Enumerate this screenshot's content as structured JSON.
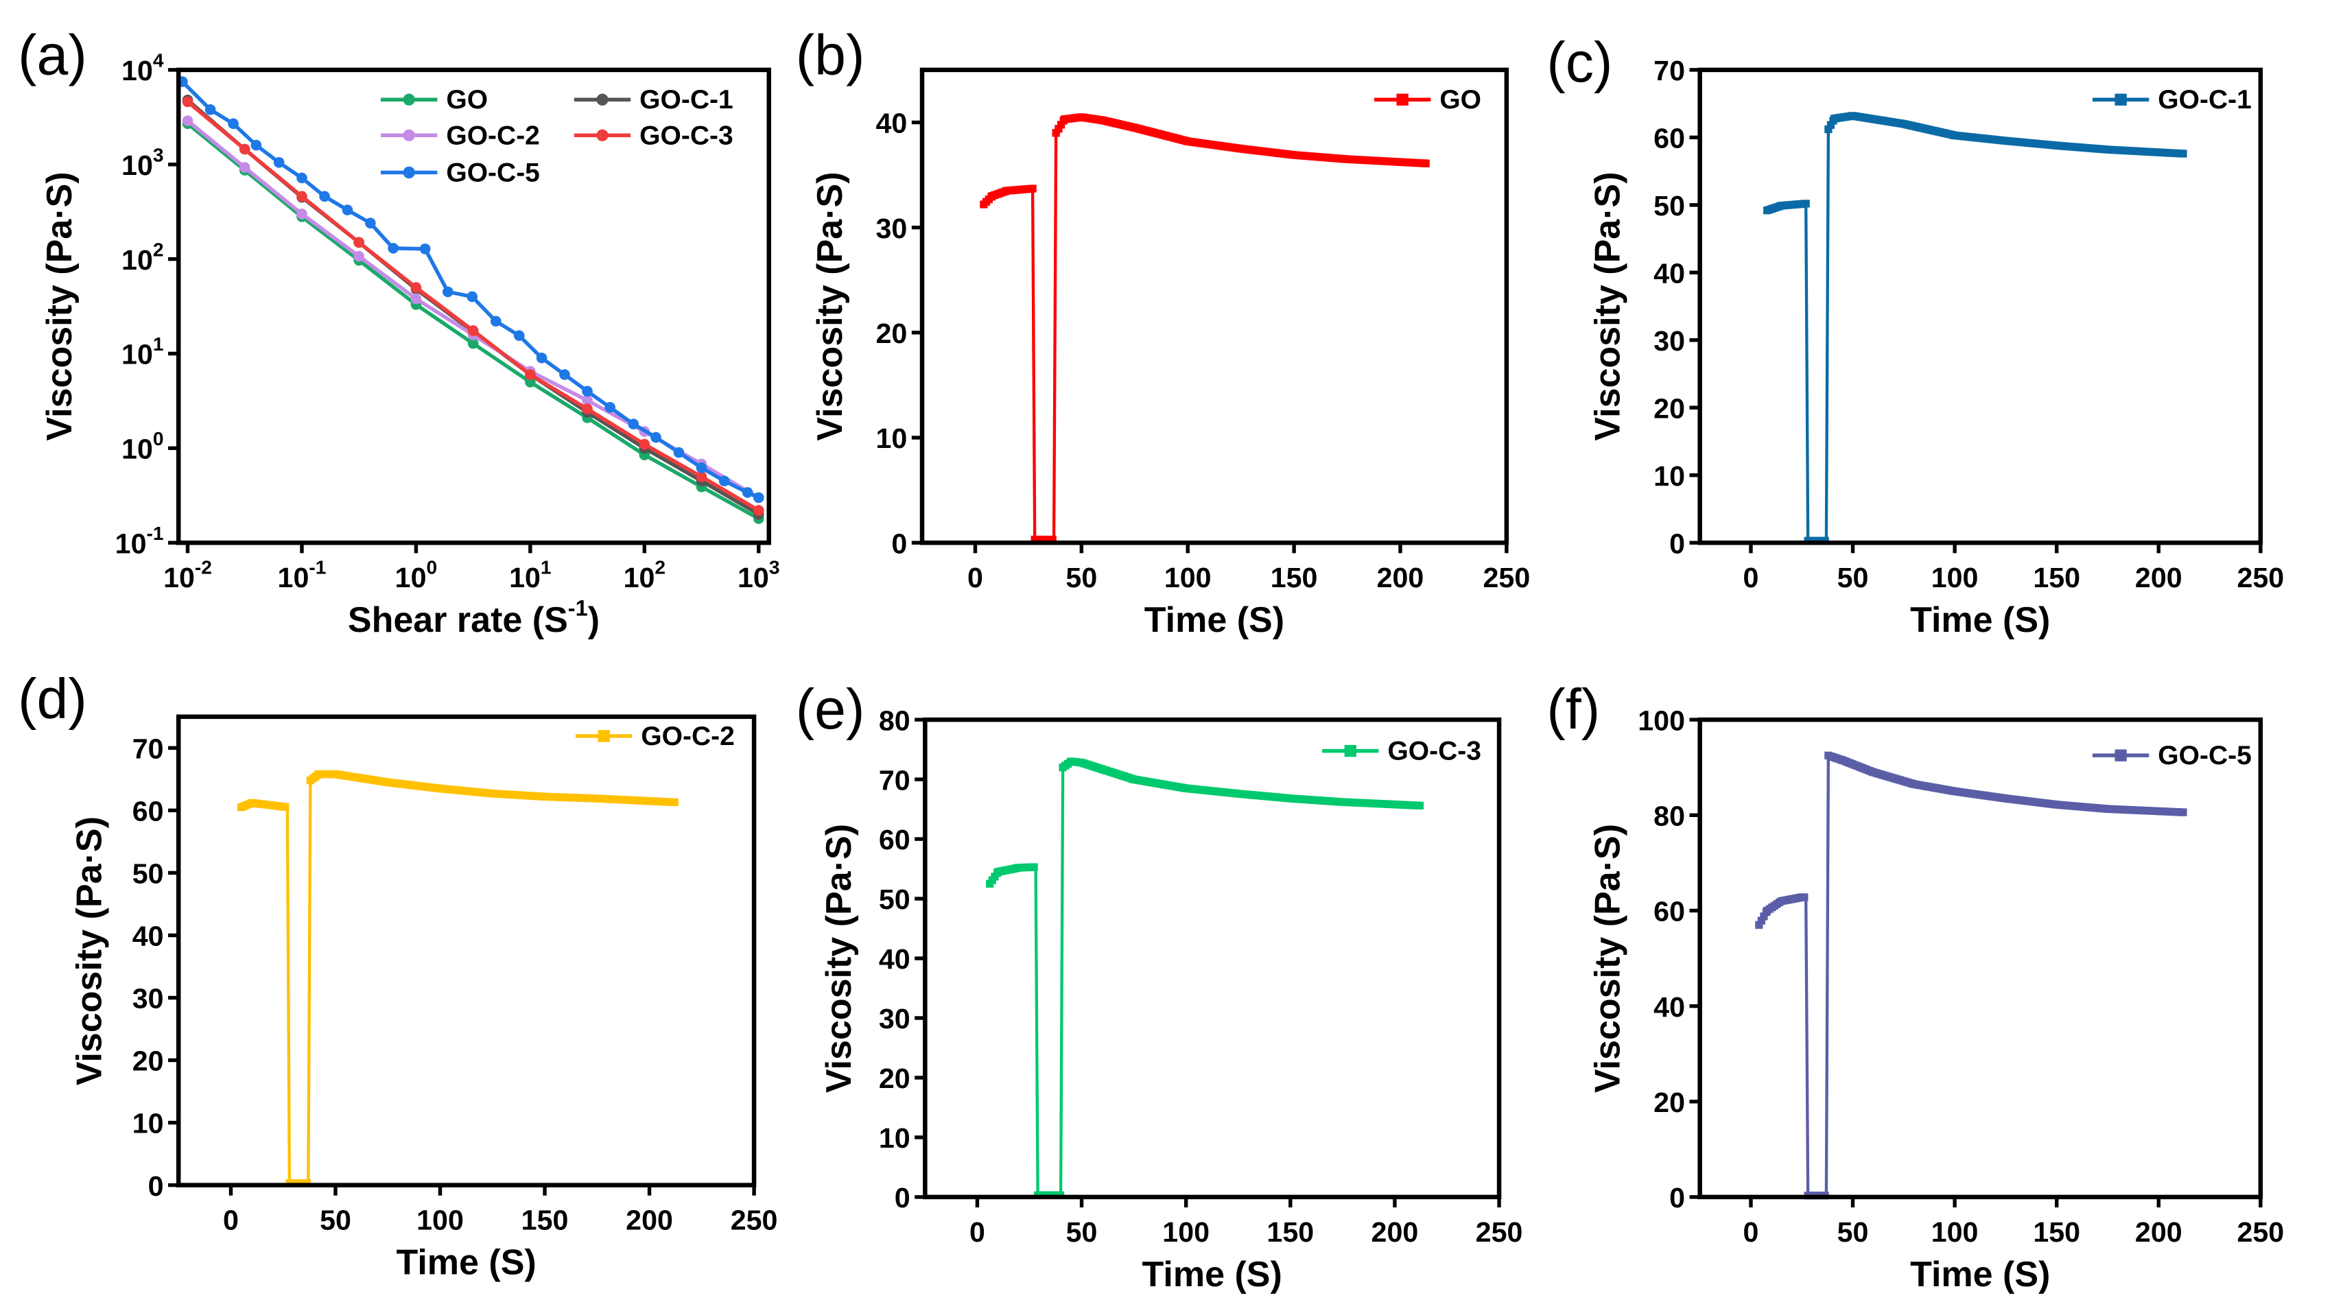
{
  "chart_data": [
    {
      "panel": "(a)",
      "type": "line",
      "xscale": "log",
      "yscale": "log",
      "xlabel": {
        "main": "Shear rate (S",
        "sup": "-1",
        "end": ")"
      },
      "ylabel": "Viscosity (Pa·S)",
      "xlim_log10": [
        -2.08,
        3.09
      ],
      "ylim_log10": [
        -1,
        4
      ],
      "xticks": [
        {
          "base": "10",
          "exp": "-2",
          "v": -2
        },
        {
          "base": "10",
          "exp": "-1",
          "v": -1
        },
        {
          "base": "10",
          "exp": "0",
          "v": 0
        },
        {
          "base": "10",
          "exp": "1",
          "v": 1
        },
        {
          "base": "10",
          "exp": "2",
          "v": 2
        },
        {
          "base": "10",
          "exp": "3",
          "v": 3
        }
      ],
      "yticks": [
        {
          "base": "10",
          "exp": "-1",
          "v": -1
        },
        {
          "base": "10",
          "exp": "0",
          "v": 0
        },
        {
          "base": "10",
          "exp": "1",
          "v": 1
        },
        {
          "base": "10",
          "exp": "2",
          "v": 2
        },
        {
          "base": "10",
          "exp": "3",
          "v": 3
        },
        {
          "base": "10",
          "exp": "4",
          "v": 4
        }
      ],
      "legend_position": "top-right",
      "series": [
        {
          "name": "GO",
          "color": "#1aa96a",
          "x": [
            0.01,
            0.0316,
            0.1,
            0.316,
            1,
            3.16,
            10,
            31.6,
            100,
            316,
            1000
          ],
          "y": [
            2700,
            870,
            280,
            97,
            33,
            12.8,
            5.0,
            2.1,
            0.85,
            0.39,
            0.18
          ]
        },
        {
          "name": "GO-C-1",
          "color": "#555555",
          "x": [
            0.01,
            0.0316,
            0.1,
            0.316,
            1,
            3.16,
            10,
            31.6,
            100,
            316,
            1000
          ],
          "y": [
            4800,
            1450,
            450,
            150,
            48,
            17,
            6,
            2.4,
            1.0,
            0.45,
            0.2
          ]
        },
        {
          "name": "GO-C-2",
          "color": "#c58be6",
          "x": [
            0.01,
            0.0316,
            0.1,
            0.316,
            1,
            3.16,
            10,
            31.6,
            100,
            316,
            1000
          ],
          "y": [
            2900,
            930,
            300,
            107,
            38,
            15.8,
            6.5,
            3.2,
            1.5,
            0.68,
            0.3
          ]
        },
        {
          "name": "GO-C-3",
          "color": "#f03c3c",
          "x": [
            0.01,
            0.0316,
            0.1,
            0.316,
            1,
            3.16,
            10,
            31.6,
            100,
            316,
            1000
          ],
          "y": [
            4600,
            1450,
            460,
            150,
            50,
            17.5,
            6,
            2.6,
            1.1,
            0.5,
            0.22
          ]
        },
        {
          "name": "GO-C-5",
          "color": "#1e78e6",
          "x": [
            0.009,
            0.0158,
            0.0251,
            0.0398,
            0.0631,
            0.1,
            0.158,
            0.251,
            0.398,
            0.631,
            1.2,
            1.9,
            3.1,
            5,
            8,
            12.6,
            20,
            31.6,
            50,
            80,
            126,
            200,
            316,
            500,
            800,
            1000
          ],
          "y": [
            7500,
            3800,
            2700,
            1600,
            1050,
            720,
            460,
            330,
            240,
            130,
            128,
            45,
            40,
            22,
            15.5,
            9,
            6,
            4,
            2.7,
            1.8,
            1.3,
            0.9,
            0.62,
            0.45,
            0.34,
            0.3
          ]
        }
      ]
    },
    {
      "panel": "(b)",
      "type": "line",
      "xlabel": "Time (S)",
      "ylabel": "Viscosity (Pa·S)",
      "xlim": [
        -25,
        250
      ],
      "ylim": [
        0,
        45
      ],
      "xticks": [
        "0",
        "50",
        "100",
        "150",
        "200",
        "250"
      ],
      "yticks": [
        "0",
        "10",
        "20",
        "30",
        "40"
      ],
      "legend_position": "top-right",
      "series": [
        {
          "name": "GO",
          "color": "#ff0000",
          "points": [
            [
              4,
              32.2
            ],
            [
              8,
              33
            ],
            [
              15,
              33.5
            ],
            [
              27,
              33.7
            ],
            [
              28,
              0.3
            ],
            [
              37,
              0.3
            ],
            [
              38,
              39
            ],
            [
              42,
              40.3
            ],
            [
              50,
              40.5
            ],
            [
              60,
              40.2
            ],
            [
              75,
              39.5
            ],
            [
              100,
              38.2
            ],
            [
              125,
              37.5
            ],
            [
              150,
              36.9
            ],
            [
              175,
              36.5
            ],
            [
              212,
              36.1
            ]
          ]
        }
      ]
    },
    {
      "panel": "(c)",
      "type": "line",
      "xlabel": "Time (S)",
      "ylabel": "Viscosity (Pa·S)",
      "xlim": [
        -25,
        250
      ],
      "ylim": [
        0,
        70
      ],
      "xticks": [
        "0",
        "50",
        "100",
        "150",
        "200",
        "250"
      ],
      "yticks": [
        "0",
        "10",
        "20",
        "30",
        "40",
        "50",
        "60",
        "70"
      ],
      "legend_position": "top-right",
      "series": [
        {
          "name": "GO-C-1",
          "color": "#0b6aa6",
          "points": [
            [
              8,
              49.2
            ],
            [
              15,
              49.9
            ],
            [
              27,
              50.2
            ],
            [
              28,
              0.3
            ],
            [
              37,
              0.3
            ],
            [
              38,
              61.2
            ],
            [
              41,
              62.8
            ],
            [
              50,
              63.2
            ],
            [
              75,
              62
            ],
            [
              100,
              60.3
            ],
            [
              125,
              59.5
            ],
            [
              150,
              58.8
            ],
            [
              175,
              58.2
            ],
            [
              212,
              57.6
            ]
          ]
        }
      ]
    },
    {
      "panel": "(d)",
      "type": "line",
      "xlabel": "Time (S)",
      "ylabel": "Viscosity (Pa·S)",
      "xlim": [
        -25,
        250
      ],
      "ylim": [
        0,
        75
      ],
      "xticks": [
        "0",
        "50",
        "100",
        "150",
        "200",
        "250"
      ],
      "yticks": [
        "0",
        "10",
        "20",
        "30",
        "40",
        "50",
        "60",
        "70"
      ],
      "legend_position": "top-right",
      "series": [
        {
          "name": "GO-C-2",
          "color": "#ffc000",
          "points": [
            [
              5,
              60.5
            ],
            [
              10,
              61.2
            ],
            [
              20,
              60.8
            ],
            [
              27,
              60.5
            ],
            [
              28,
              0.3
            ],
            [
              37,
              0.3
            ],
            [
              38,
              64.8
            ],
            [
              42,
              65.8
            ],
            [
              50,
              65.8
            ],
            [
              75,
              64.5
            ],
            [
              100,
              63.5
            ],
            [
              125,
              62.7
            ],
            [
              150,
              62.2
            ],
            [
              175,
              61.9
            ],
            [
              212,
              61.3
            ]
          ]
        }
      ]
    },
    {
      "panel": "(e)",
      "type": "line",
      "xlabel": "Time (S)",
      "ylabel": "Viscosity (Pa·S)",
      "xlim": [
        -25,
        250
      ],
      "ylim": [
        0,
        80
      ],
      "xticks": [
        "0",
        "50",
        "100",
        "150",
        "200",
        "250"
      ],
      "yticks": [
        "0",
        "10",
        "20",
        "30",
        "40",
        "50",
        "60",
        "70",
        "80"
      ],
      "legend_position": "top-right",
      "series": [
        {
          "name": "GO-C-3",
          "color": "#00c86e",
          "points": [
            [
              6,
              52.5
            ],
            [
              10,
              54.5
            ],
            [
              20,
              55.2
            ],
            [
              28,
              55.3
            ],
            [
              29,
              0.3
            ],
            [
              40,
              0.3
            ],
            [
              41,
              72
            ],
            [
              45,
              73
            ],
            [
              50,
              72.8
            ],
            [
              75,
              70
            ],
            [
              100,
              68.5
            ],
            [
              125,
              67.6
            ],
            [
              150,
              66.8
            ],
            [
              175,
              66.2
            ],
            [
              212,
              65.6
            ]
          ]
        }
      ]
    },
    {
      "panel": "(f)",
      "type": "line",
      "xlabel": "Time (S)",
      "ylabel": "Viscosity (Pa·S)",
      "xlim": [
        -25,
        250
      ],
      "ylim": [
        0,
        100
      ],
      "xticks": [
        "0",
        "50",
        "100",
        "150",
        "200",
        "250"
      ],
      "yticks": [
        "0",
        "20",
        "40",
        "60",
        "80",
        "100"
      ],
      "legend_position": "top-right",
      "series": [
        {
          "name": "GO-C-5",
          "color": "#5b5ea6",
          "points": [
            [
              4,
              57
            ],
            [
              8,
              60
            ],
            [
              15,
              62
            ],
            [
              25,
              62.8
            ],
            [
              27,
              62.8
            ],
            [
              28,
              0.3
            ],
            [
              37,
              0.3
            ],
            [
              38,
              92.5
            ],
            [
              45,
              91.5
            ],
            [
              60,
              89
            ],
            [
              80,
              86.5
            ],
            [
              100,
              85
            ],
            [
              125,
              83.5
            ],
            [
              150,
              82.2
            ],
            [
              175,
              81.3
            ],
            [
              212,
              80.6
            ]
          ]
        }
      ]
    }
  ]
}
